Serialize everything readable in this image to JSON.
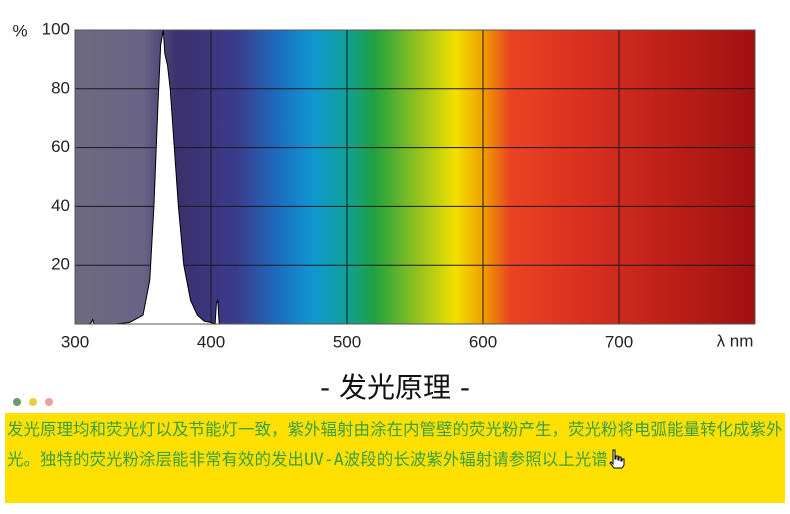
{
  "chart_data": {
    "type": "line",
    "y_label": "%",
    "x_label": "λ nm",
    "x": [
      300,
      310,
      312,
      313,
      314,
      330,
      340,
      350,
      355,
      358,
      361,
      363,
      365,
      366,
      368,
      370,
      373,
      376,
      380,
      385,
      390,
      395,
      400,
      403,
      404,
      405,
      406,
      410,
      800
    ],
    "values": [
      0,
      0,
      0.5,
      1.5,
      0,
      0,
      0.5,
      3,
      15,
      40,
      75,
      95,
      100,
      92,
      88,
      80,
      60,
      40,
      20,
      8,
      3,
      1,
      0.5,
      0,
      7,
      8,
      0,
      0,
      0
    ],
    "color": "#000000",
    "fill": "#ffffff",
    "xlim": [
      300,
      800
    ],
    "xticks": [
      300,
      400,
      500,
      600,
      700
    ],
    "ylim": [
      0,
      100
    ],
    "yticks": [
      20,
      40,
      60,
      80,
      100
    ],
    "grid": true
  },
  "heading": "- 发光原理 -",
  "caption": "发光原理均和荧光灯以及节能灯一致，紫外辐射由涂在内管壁的荧光粉产生，荧光粉将电弧能量转化成紫外光。独特的荧光粉涂层能非常有效的发出UV-A波段的长波紫外辐射请参照以上光谱"
}
